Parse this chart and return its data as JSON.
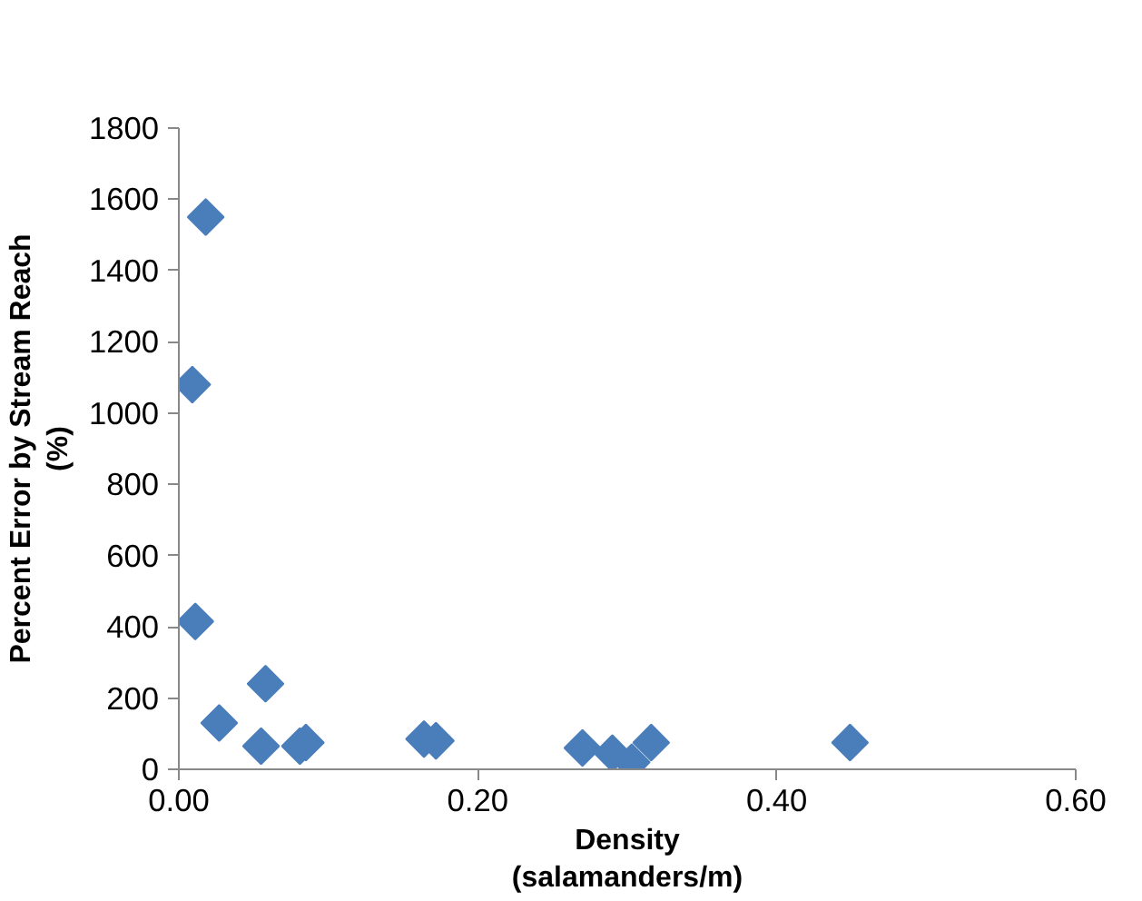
{
  "chart_data": {
    "type": "scatter",
    "xlabel": "Density\n(salamanders/m)",
    "ylabel": "Percent Error by Stream Reach\n(%)",
    "x": [
      0.018,
      0.009,
      0.011,
      0.027,
      0.058,
      0.055,
      0.081,
      0.085,
      0.164,
      0.172,
      0.27,
      0.29,
      0.303,
      0.316,
      0.449
    ],
    "values": [
      1550,
      1080,
      415,
      130,
      240,
      65,
      65,
      75,
      85,
      80,
      60,
      45,
      20,
      75,
      75
    ],
    "color": "#4a7ebb",
    "marker": "diamond",
    "xlim": [
      0,
      0.6
    ],
    "xticks": [
      {
        "value": 0,
        "label": "0.00"
      },
      {
        "value": 0.2,
        "label": "0.20"
      },
      {
        "value": 0.4,
        "label": "0.40"
      },
      {
        "value": 0.6,
        "label": "0.60"
      }
    ],
    "ylim": [
      0,
      1800
    ],
    "yticks": [
      0,
      200,
      400,
      600,
      800,
      1000,
      1200,
      1400,
      1600,
      1800
    ],
    "grid": false
  }
}
